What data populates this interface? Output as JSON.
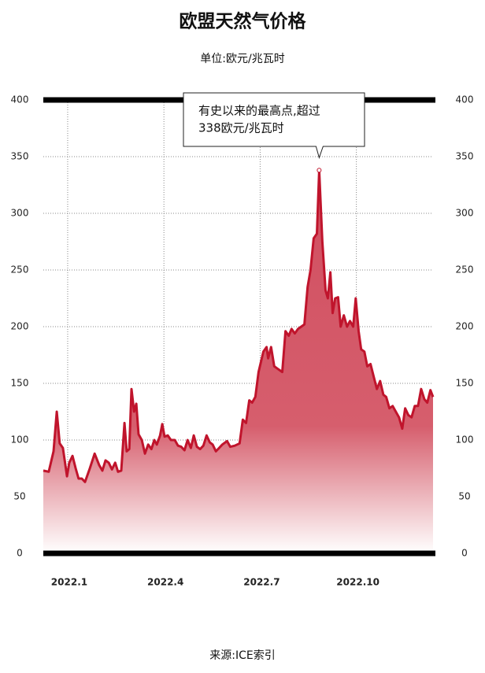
{
  "chart_data": {
    "type": "area",
    "title": "欧盟天然气价格",
    "subtitle": "单位:欧元/兆瓦时",
    "annotation": [
      "有史以来的最高点,超过",
      "338欧元/兆瓦时"
    ],
    "source": "来源:ICE索引",
    "color": "#c0142c",
    "fill_color": "#cf4a5c",
    "grid": true,
    "xlim": [
      0.24,
      12.39
    ],
    "xticks": [
      {
        "value": 1,
        "label": "2022.1"
      },
      {
        "value": 4,
        "label": "2022.4"
      },
      {
        "value": 7,
        "label": "2022.7"
      },
      {
        "value": 10,
        "label": "2022.10"
      }
    ],
    "ylim": [
      0,
      400
    ],
    "yticks": [
      0,
      50,
      100,
      150,
      200,
      250,
      300,
      350,
      400
    ],
    "x": [
      0.24,
      0.41,
      0.56,
      0.66,
      0.75,
      0.85,
      0.98,
      1.05,
      1.15,
      1.25,
      1.34,
      1.44,
      1.54,
      1.69,
      1.84,
      1.98,
      2.08,
      2.18,
      2.28,
      2.38,
      2.48,
      2.57,
      2.67,
      2.77,
      2.84,
      2.92,
      2.99,
      3.07,
      3.14,
      3.21,
      3.31,
      3.41,
      3.51,
      3.61,
      3.7,
      3.78,
      3.88,
      3.95,
      4.02,
      4.12,
      4.22,
      4.34,
      4.44,
      4.54,
      4.64,
      4.74,
      4.84,
      4.93,
      5.03,
      5.13,
      5.23,
      5.33,
      5.43,
      5.52,
      5.62,
      5.72,
      5.82,
      5.97,
      6.07,
      6.21,
      6.36,
      6.46,
      6.56,
      6.66,
      6.75,
      6.85,
      6.95,
      7.1,
      7.2,
      7.25,
      7.34,
      7.44,
      7.54,
      7.69,
      7.79,
      7.89,
      7.98,
      8.08,
      8.18,
      8.28,
      8.38,
      8.48,
      8.57,
      8.67,
      8.77,
      8.84,
      8.94,
      9.04,
      9.11,
      9.19,
      9.26,
      9.34,
      9.43,
      9.51,
      9.61,
      9.71,
      9.8,
      9.9,
      9.98,
      10.07,
      10.15,
      10.25,
      10.34,
      10.44,
      10.54,
      10.64,
      10.74,
      10.84,
      10.93,
      11.03,
      11.13,
      11.23,
      11.33,
      11.43,
      11.52,
      11.62,
      11.72,
      11.82,
      11.92,
      12.02,
      12.12,
      12.21,
      12.31,
      12.39
    ],
    "values": [
      73,
      72,
      90,
      125,
      97,
      93,
      68,
      80,
      86,
      75,
      66,
      66,
      63,
      75,
      88,
      78,
      73,
      82,
      80,
      74,
      80,
      72,
      73,
      115,
      90,
      92,
      145,
      125,
      132,
      105,
      100,
      88,
      96,
      92,
      100,
      96,
      104,
      114,
      103,
      104,
      100,
      100,
      95,
      94,
      91,
      100,
      93,
      104,
      94,
      92,
      95,
      104,
      98,
      96,
      90,
      93,
      96,
      99,
      94,
      95,
      97,
      118,
      115,
      135,
      133,
      138,
      160,
      178,
      182,
      172,
      182,
      165,
      163,
      160,
      196,
      192,
      198,
      194,
      198,
      200,
      202,
      235,
      250,
      278,
      282,
      338,
      275,
      232,
      225,
      248,
      212,
      225,
      226,
      200,
      210,
      200,
      205,
      200,
      225,
      196,
      180,
      178,
      165,
      167,
      156,
      145,
      152,
      140,
      138,
      128,
      130,
      125,
      120,
      110,
      128,
      122,
      120,
      130,
      130,
      145,
      136,
      133,
      144,
      138
    ],
    "peak_index": 85
  }
}
